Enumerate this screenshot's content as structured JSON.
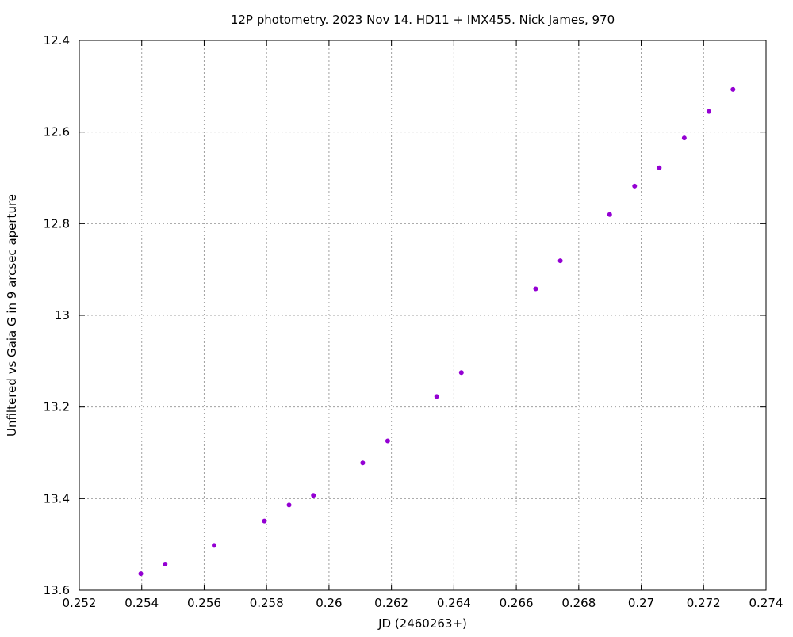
{
  "chart_data": {
    "type": "scatter",
    "title": "12P photometry. 2023 Nov 14. HD11 + IMX455.  Nick James, 970",
    "xlabel": "JD (2460263+)",
    "ylabel": "Unfiltered vs Gaia G in 9 arcsec aperture",
    "xlim": [
      0.252,
      0.274
    ],
    "ylim": [
      13.6,
      12.4
    ],
    "y_reversed": true,
    "grid": true,
    "marker_color": "#9400d3",
    "x_ticks": [
      {
        "value": 0.252,
        "label": "0.252"
      },
      {
        "value": 0.254,
        "label": "0.254"
      },
      {
        "value": 0.256,
        "label": "0.256"
      },
      {
        "value": 0.258,
        "label": "0.258"
      },
      {
        "value": 0.26,
        "label": "0.26"
      },
      {
        "value": 0.262,
        "label": "0.262"
      },
      {
        "value": 0.264,
        "label": "0.264"
      },
      {
        "value": 0.266,
        "label": "0.266"
      },
      {
        "value": 0.268,
        "label": "0.268"
      },
      {
        "value": 0.27,
        "label": "0.27"
      },
      {
        "value": 0.272,
        "label": "0.272"
      },
      {
        "value": 0.274,
        "label": "0.274"
      }
    ],
    "y_ticks": [
      {
        "value": 12.4,
        "label": "12.4"
      },
      {
        "value": 12.6,
        "label": "12.6"
      },
      {
        "value": 12.8,
        "label": "12.8"
      },
      {
        "value": 13,
        "label": "13"
      },
      {
        "value": 13.2,
        "label": "13.2"
      },
      {
        "value": 13.4,
        "label": "13.4"
      },
      {
        "value": 13.6,
        "label": "13.6"
      }
    ],
    "points": [
      {
        "x": 0.25397,
        "y": 13.564
      },
      {
        "x": 0.25475,
        "y": 13.543
      },
      {
        "x": 0.25632,
        "y": 13.502
      },
      {
        "x": 0.25793,
        "y": 13.449
      },
      {
        "x": 0.25872,
        "y": 13.414
      },
      {
        "x": 0.2595,
        "y": 13.393
      },
      {
        "x": 0.26108,
        "y": 13.322
      },
      {
        "x": 0.26188,
        "y": 13.274
      },
      {
        "x": 0.26345,
        "y": 13.177
      },
      {
        "x": 0.26424,
        "y": 13.125
      },
      {
        "x": 0.26662,
        "y": 12.942
      },
      {
        "x": 0.26741,
        "y": 12.881
      },
      {
        "x": 0.26899,
        "y": 12.78
      },
      {
        "x": 0.26979,
        "y": 12.718
      },
      {
        "x": 0.27058,
        "y": 12.678
      },
      {
        "x": 0.27138,
        "y": 12.613
      },
      {
        "x": 0.27217,
        "y": 12.555
      },
      {
        "x": 0.27294,
        "y": 12.507
      }
    ]
  }
}
